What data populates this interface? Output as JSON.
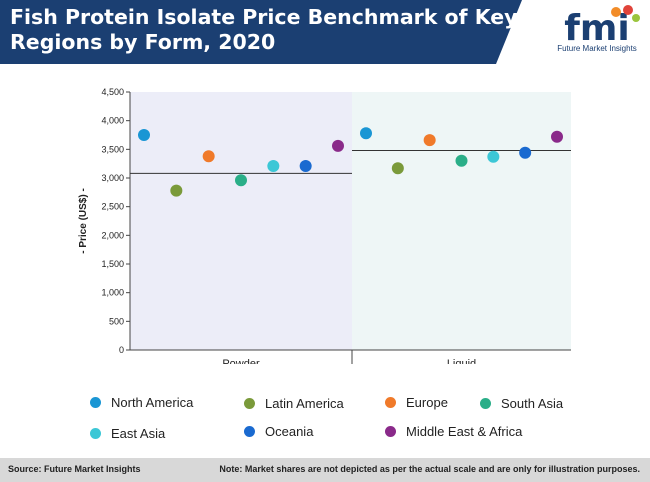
{
  "header": {
    "title": "Fish Protein Isolate Price Benchmark of Key Regions by Form, 2020",
    "logo_text": "fmi",
    "logo_caption": "Future Market Insights",
    "bg_color": "#1b3f72"
  },
  "footer": {
    "source": "Source: Future Market Insights",
    "note": "Note: Market shares are not depicted as per the actual scale and are only for illustration purposes."
  },
  "chart_data": {
    "type": "scatter",
    "title": "Fish Protein Isolate Price Benchmark of Key Regions by Form, 2020",
    "xlabel": "",
    "ylabel": "- Price (US$) -",
    "ylim": [
      0,
      4500
    ],
    "yticks": [
      "0",
      "500",
      "1,000",
      "1,500",
      "2,000",
      "2,500",
      "3,000",
      "3,500",
      "4,000",
      "4,500"
    ],
    "categories": [
      "Powder",
      "Liquid"
    ],
    "benchmarks": [
      3080,
      3480
    ],
    "grid": false,
    "legend_position": "bottom",
    "series": [
      {
        "name": "North America",
        "color": "#1a96d4",
        "values": [
          3750,
          3780
        ]
      },
      {
        "name": "Latin America",
        "color": "#7a9a3a",
        "values": [
          2780,
          3170
        ]
      },
      {
        "name": "Europe",
        "color": "#f07a2a",
        "values": [
          3380,
          3660
        ]
      },
      {
        "name": "South Asia",
        "color": "#2aae88",
        "values": [
          2960,
          3300
        ]
      },
      {
        "name": "East Asia",
        "color": "#3cc7d6",
        "values": [
          3210,
          3370
        ]
      },
      {
        "name": "Oceania",
        "color": "#1a6ad0",
        "values": [
          3210,
          3440
        ]
      },
      {
        "name": "Middle East & Africa",
        "color": "#8a2a8a",
        "values": [
          3560,
          3720
        ]
      }
    ]
  }
}
